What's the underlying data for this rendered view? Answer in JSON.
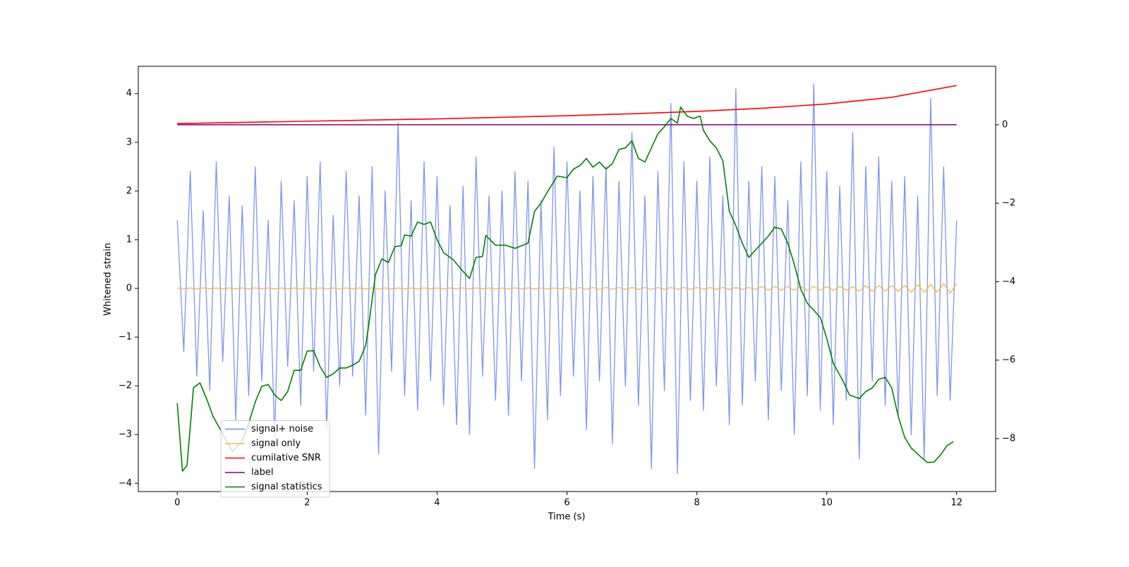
{
  "chart_data": {
    "type": "line",
    "xlabel": "Time (s)",
    "ylabel": "Whitened strain",
    "xlim": [
      -0.6,
      12.6
    ],
    "xticks": [
      0,
      2,
      4,
      6,
      8,
      10,
      12
    ],
    "ylim": [
      -4.17,
      4.56
    ],
    "yticks": [
      {
        "value": -4,
        "label": "−4"
      },
      {
        "value": -3,
        "label": "−3"
      },
      {
        "value": -2,
        "label": "−2"
      },
      {
        "value": -1,
        "label": "−1"
      },
      0,
      1,
      2,
      3,
      4
    ],
    "y2lim": [
      -9.35,
      1.49
    ],
    "y2ticks": [
      {
        "value": -8,
        "label": "−8"
      },
      {
        "value": -6,
        "label": "−6"
      },
      {
        "value": -4,
        "label": "−4"
      },
      {
        "value": -2,
        "label": "−2"
      },
      0
    ],
    "legend_loc": "lower left",
    "x": [
      0,
      0.1,
      0.2,
      0.3,
      0.4,
      0.5,
      0.6,
      0.7,
      0.8,
      0.9,
      1,
      1.1,
      1.2,
      1.3,
      1.4,
      1.5,
      1.6,
      1.7,
      1.8,
      1.9,
      2,
      2.1,
      2.2,
      2.3,
      2.4,
      2.5,
      2.6,
      2.7,
      2.8,
      2.9,
      3,
      3.1,
      3.2,
      3.3,
      3.4,
      3.5,
      3.6,
      3.7,
      3.8,
      3.9,
      4,
      4.1,
      4.2,
      4.3,
      4.4,
      4.5,
      4.6,
      4.7,
      4.8,
      4.9,
      5,
      5.1,
      5.2,
      5.3,
      5.4,
      5.5,
      5.6,
      5.7,
      5.8,
      5.9,
      6,
      6.1,
      6.2,
      6.3,
      6.4,
      6.5,
      6.6,
      6.7,
      6.8,
      6.9,
      7,
      7.1,
      7.2,
      7.3,
      7.4,
      7.5,
      7.6,
      7.7,
      7.8,
      7.9,
      8,
      8.1,
      8.2,
      8.3,
      8.4,
      8.5,
      8.6,
      8.7,
      8.8,
      8.9,
      9,
      9.1,
      9.2,
      9.3,
      9.4,
      9.5,
      9.6,
      9.7,
      9.8,
      9.9,
      10,
      10.1,
      10.2,
      10.3,
      10.4,
      10.5,
      10.6,
      10.7,
      10.8,
      10.9,
      11,
      11.1,
      11.2,
      11.3,
      11.4,
      11.5,
      11.6,
      11.7,
      11.8,
      11.9,
      12
    ],
    "series": [
      {
        "name": "signal+ noise",
        "color": "#6f8be8",
        "values": [
          1.4,
          -1.3,
          2.4,
          -1.8,
          1.6,
          -2.1,
          2.6,
          -1.5,
          1.9,
          -2.7,
          1.7,
          -2.2,
          2.5,
          -1.9,
          1.4,
          -3.1,
          2.2,
          -1.6,
          1.8,
          -2.4,
          2.3,
          -1.7,
          2.6,
          -2.9,
          1.5,
          -2.0,
          2.4,
          -1.8,
          1.9,
          -2.6,
          2.5,
          -3.4,
          2.0,
          -1.7,
          3.4,
          -2.2,
          1.8,
          -2.5,
          2.6,
          -1.9,
          2.3,
          -2.4,
          1.7,
          -2.8,
          2.1,
          -3.0,
          2.7,
          -1.8,
          1.9,
          -2.3,
          2.0,
          -2.6,
          2.4,
          -1.9,
          2.2,
          -3.7,
          1.8,
          -2.7,
          2.9,
          -2.2,
          2.6,
          -1.8,
          2.0,
          -2.9,
          2.3,
          -1.9,
          2.5,
          -3.2,
          2.2,
          -2.0,
          3.2,
          -2.4,
          1.9,
          -3.7,
          2.4,
          -2.1,
          3.8,
          -3.8,
          2.6,
          -2.3,
          2.2,
          -2.5,
          2.7,
          -2.0,
          1.9,
          -2.8,
          4.1,
          -2.4,
          2.2,
          -1.9,
          2.5,
          -2.7,
          2.3,
          -2.1,
          1.8,
          -3.0,
          2.6,
          -2.2,
          4.2,
          -2.5,
          2.4,
          -2.8,
          2.1,
          -2.3,
          3.2,
          -3.5,
          2.5,
          -1.9,
          2.7,
          -2.4,
          2.2,
          -2.6,
          2.3,
          -3.0,
          1.9,
          -3.5,
          3.9,
          -2.2,
          2.5,
          -2.3,
          1.4
        ]
      },
      {
        "name": "signal only",
        "color": "#f5b65a",
        "values": [
          0.01,
          -0.01,
          0.01,
          -0.01,
          0.01,
          -0.01,
          0.01,
          -0.01,
          0.01,
          -0.01,
          0.01,
          -0.01,
          0.01,
          -0.01,
          0.01,
          -0.01,
          0.01,
          -0.01,
          0.01,
          -0.01,
          0.01,
          -0.01,
          0.01,
          -0.01,
          0.01,
          -0.01,
          0.01,
          -0.01,
          0.01,
          -0.01,
          0.01,
          -0.01,
          0.01,
          -0.01,
          0.01,
          -0.01,
          0.01,
          -0.01,
          0.01,
          -0.01,
          0.01,
          -0.01,
          0.01,
          -0.01,
          0.01,
          -0.01,
          0.01,
          -0.01,
          0.01,
          -0.01,
          0.01,
          -0.01,
          0.01,
          -0.01,
          0.01,
          -0.01,
          0.01,
          -0.01,
          0.01,
          -0.01,
          0.02,
          -0.02,
          0.02,
          -0.02,
          0.02,
          -0.02,
          0.02,
          -0.02,
          0.02,
          -0.02,
          0.02,
          -0.02,
          0.02,
          -0.02,
          0.02,
          -0.02,
          0.02,
          -0.02,
          0.02,
          -0.02,
          0.02,
          -0.02,
          0.02,
          -0.02,
          0.02,
          -0.02,
          0.02,
          -0.02,
          0.02,
          -0.02,
          0.04,
          -0.04,
          0.04,
          -0.04,
          0.04,
          -0.04,
          0.04,
          -0.04,
          0.04,
          -0.04,
          0.04,
          -0.04,
          0.04,
          -0.04,
          0.04,
          -0.06,
          0.06,
          -0.06,
          0.06,
          -0.06,
          0.06,
          -0.06,
          0.06,
          -0.08,
          0.08,
          -0.08,
          0.08,
          -0.08,
          0.1,
          -0.1,
          0.1
        ]
      },
      {
        "name": "cumilative SNR",
        "color": "#ff0000",
        "axis": "y2",
        "x": [
          0,
          1,
          2,
          3,
          4,
          5,
          6,
          7,
          8,
          9,
          10,
          11,
          12
        ],
        "values": [
          0.03,
          0.06,
          0.09,
          0.12,
          0.15,
          0.19,
          0.23,
          0.28,
          0.34,
          0.42,
          0.53,
          0.7,
          1.0
        ]
      },
      {
        "name": "label",
        "color": "#800080",
        "axis": "y2",
        "x": [
          0,
          12
        ],
        "values": [
          0,
          0
        ]
      },
      {
        "name": "signal statistics",
        "color": "#008000",
        "axis": "y2",
        "x": [
          0,
          0.08,
          0.15,
          0.25,
          0.35,
          0.45,
          0.55,
          0.7,
          0.85,
          1.0,
          1.1,
          1.2,
          1.3,
          1.4,
          1.5,
          1.6,
          1.7,
          1.8,
          1.9,
          2.0,
          2.1,
          2.2,
          2.3,
          2.4,
          2.5,
          2.6,
          2.7,
          2.8,
          2.9,
          2.95,
          3.05,
          3.15,
          3.25,
          3.35,
          3.45,
          3.5,
          3.6,
          3.7,
          3.8,
          3.9,
          4.0,
          4.1,
          4.25,
          4.4,
          4.5,
          4.6,
          4.7,
          4.75,
          4.9,
          5.05,
          5.2,
          5.4,
          5.5,
          5.6,
          5.7,
          5.85,
          6.0,
          6.1,
          6.2,
          6.3,
          6.4,
          6.5,
          6.6,
          6.7,
          6.8,
          6.9,
          7.0,
          7.1,
          7.2,
          7.3,
          7.4,
          7.5,
          7.6,
          7.7,
          7.75,
          7.85,
          7.95,
          8.05,
          8.1,
          8.2,
          8.3,
          8.4,
          8.5,
          8.6,
          8.7,
          8.8,
          8.9,
          9.0,
          9.1,
          9.2,
          9.3,
          9.4,
          9.5,
          9.6,
          9.7,
          9.8,
          9.9,
          10.0,
          10.1,
          10.25,
          10.35,
          10.5,
          10.6,
          10.7,
          10.8,
          10.9,
          11.0,
          11.1,
          11.2,
          11.3,
          11.45,
          11.55,
          11.65,
          11.75,
          11.85,
          11.95
        ],
        "values": [
          -7.1,
          -8.83,
          -8.69,
          -6.7,
          -6.58,
          -6.98,
          -7.43,
          -7.88,
          -8.33,
          -8.06,
          -7.61,
          -7.07,
          -6.67,
          -6.62,
          -6.89,
          -7.03,
          -6.8,
          -6.26,
          -6.26,
          -5.77,
          -5.76,
          -6.17,
          -6.44,
          -6.35,
          -6.2,
          -6.2,
          -6.13,
          -6.03,
          -5.63,
          -5.09,
          -3.83,
          -3.42,
          -3.51,
          -3.11,
          -3.08,
          -2.81,
          -2.84,
          -2.48,
          -2.54,
          -2.48,
          -2.93,
          -3.26,
          -3.44,
          -3.74,
          -3.92,
          -3.38,
          -3.36,
          -2.82,
          -3.07,
          -3.07,
          -3.15,
          -3.02,
          -2.21,
          -2.0,
          -1.71,
          -1.31,
          -1.35,
          -1.13,
          -1.04,
          -0.86,
          -1.08,
          -0.95,
          -1.13,
          -0.99,
          -0.63,
          -0.59,
          -0.41,
          -0.86,
          -0.95,
          -0.59,
          -0.23,
          -0.05,
          0.16,
          0.04,
          0.45,
          0.22,
          0.16,
          0.22,
          -0.14,
          -0.41,
          -0.59,
          -0.92,
          -2.21,
          -2.57,
          -3.02,
          -3.38,
          -3.2,
          -3.02,
          -2.84,
          -2.61,
          -2.66,
          -3.02,
          -3.56,
          -4.19,
          -4.55,
          -4.73,
          -4.91,
          -5.45,
          -6.08,
          -6.53,
          -6.89,
          -6.98,
          -6.8,
          -6.71,
          -6.49,
          -6.44,
          -6.71,
          -7.43,
          -7.97,
          -8.24,
          -8.47,
          -8.61,
          -8.6,
          -8.42,
          -8.18,
          -8.08
        ]
      }
    ]
  }
}
